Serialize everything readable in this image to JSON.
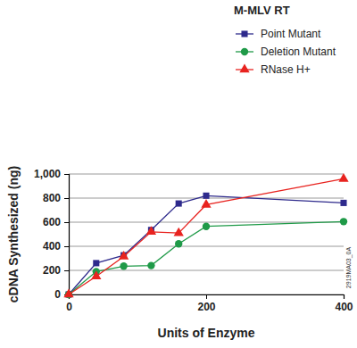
{
  "chart_data": {
    "type": "line",
    "legend_title": "M-MLV RT",
    "x_label": "Units of Enzyme",
    "y_label": "cDNA Synthesized (ng)",
    "annotations": [
      {
        "text": "2919MA03_0A"
      }
    ],
    "x": [
      0,
      40,
      80,
      120,
      160,
      200,
      400
    ],
    "series": [
      {
        "name": "Point Mutant",
        "color": "#2e2a8c",
        "marker": "square",
        "values": [
          0,
          260,
          325,
          535,
          755,
          820,
          760
        ]
      },
      {
        "name": "Deletion Mutant",
        "color": "#1f9a48",
        "marker": "circle",
        "values": [
          0,
          190,
          235,
          240,
          420,
          565,
          605
        ]
      },
      {
        "name": "RNase H+",
        "color": "#e8231f",
        "marker": "triangle",
        "values": [
          0,
          150,
          315,
          520,
          510,
          745,
          960
        ]
      }
    ],
    "xlim": [
      0,
      400
    ],
    "xticks": [
      0,
      200,
      400
    ],
    "ylim": [
      0,
      1000
    ],
    "yticks": [
      0,
      200,
      400,
      600,
      800,
      {
        "value": 1000,
        "label": "1,000"
      }
    ],
    "grid": true,
    "legend": "upper right"
  }
}
